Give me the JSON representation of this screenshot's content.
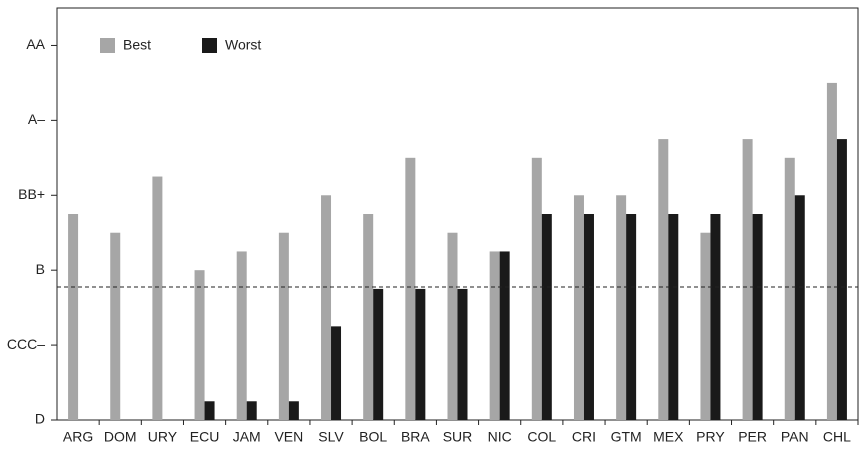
{
  "chart_data": {
    "type": "bar",
    "categories": [
      "ARG",
      "DOM",
      "URY",
      "ECU",
      "JAM",
      "VEN",
      "SLV",
      "BOL",
      "BRA",
      "SUR",
      "NIC",
      "COL",
      "CRI",
      "GTM",
      "MEX",
      "PRY",
      "PER",
      "PAN",
      "CHL"
    ],
    "series": [
      {
        "name": "Best",
        "color": "#a6a6a6",
        "values": [
          11,
          10,
          13,
          8,
          9,
          10,
          12,
          11,
          14,
          10,
          9,
          14,
          12,
          12,
          15,
          10,
          15,
          14,
          18
        ]
      },
      {
        "name": "Worst",
        "color": "#1a1a1a",
        "values": [
          null,
          null,
          null,
          1,
          1,
          1,
          5,
          7,
          7,
          7,
          9,
          11,
          11,
          11,
          11,
          11,
          11,
          12,
          15
        ]
      }
    ],
    "ylim": [
      0,
      22
    ],
    "yticks": [
      {
        "value": 0,
        "label": "D"
      },
      {
        "value": 4,
        "label": "CCC–"
      },
      {
        "value": 8,
        "label": "B"
      },
      {
        "value": 12,
        "label": "BB+"
      },
      {
        "value": 16,
        "label": "A–"
      },
      {
        "value": 20,
        "label": "AA"
      }
    ],
    "reference_line": 7.1,
    "legend": "top-left"
  }
}
